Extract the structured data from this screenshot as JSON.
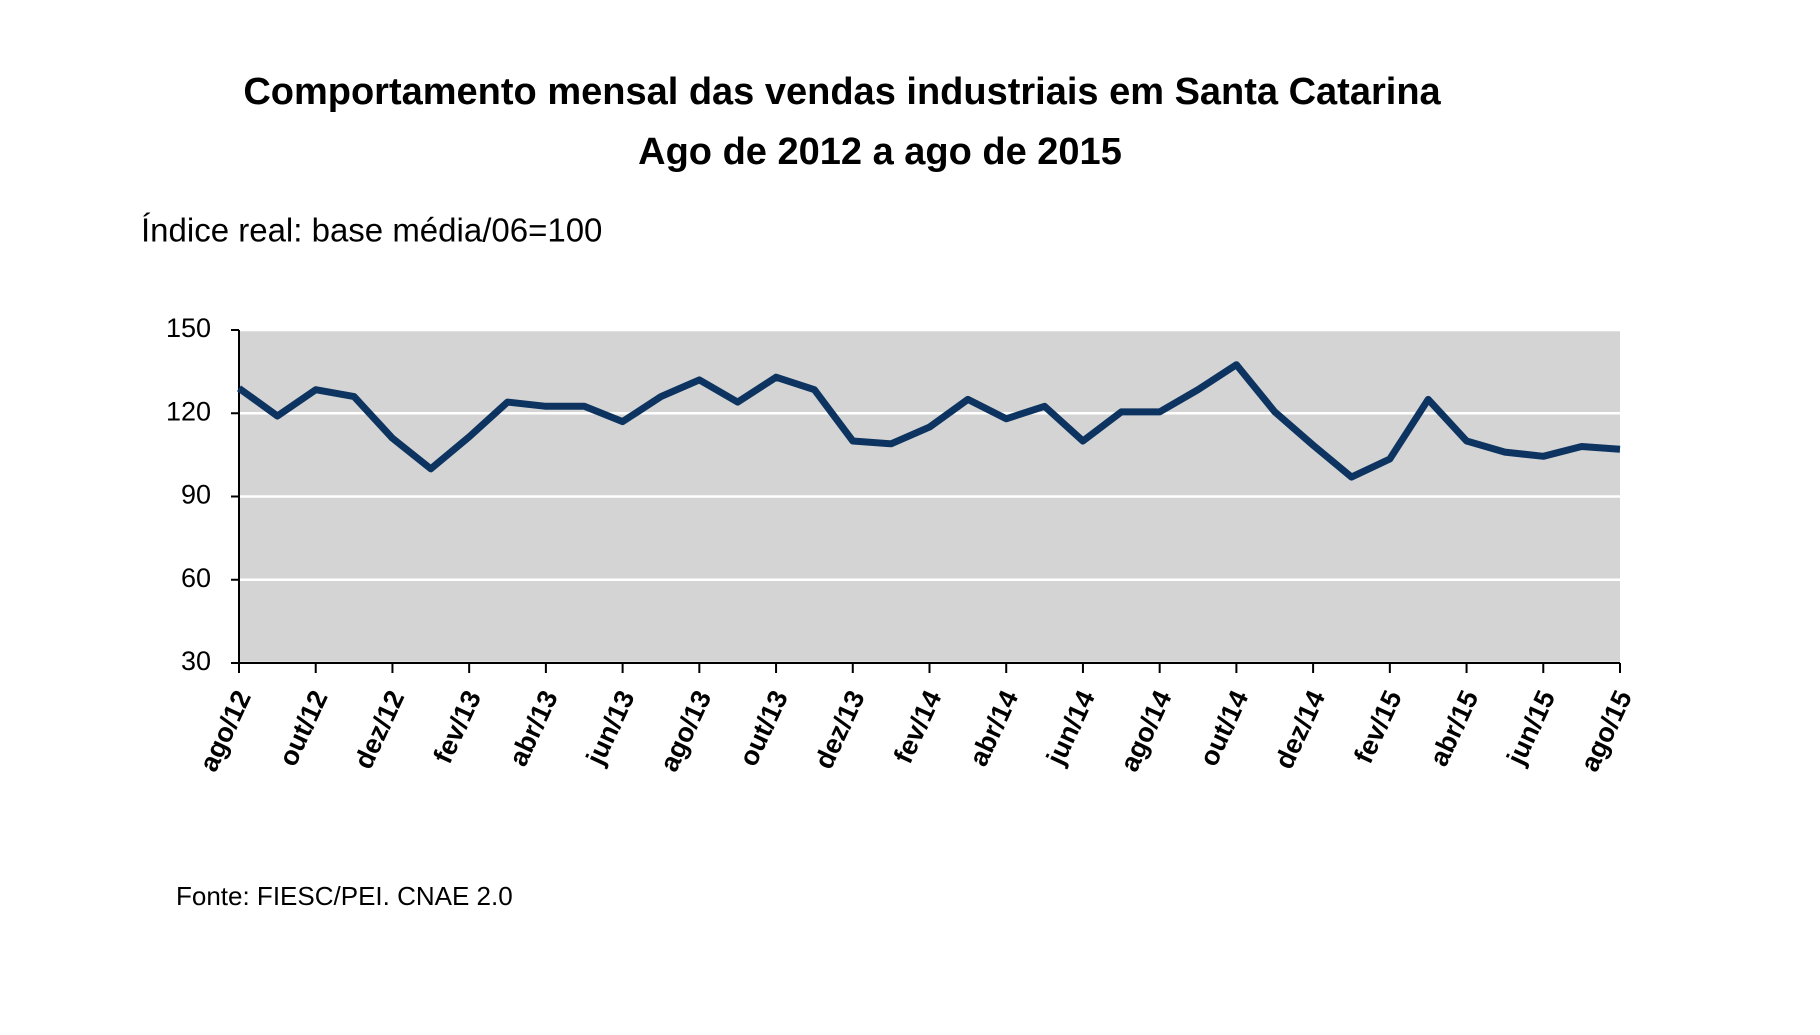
{
  "chart_data": {
    "type": "line",
    "title": "Comportamento mensal das vendas industriais em Santa Catarina",
    "subtitle": "Ago de 2012 a ago de 2015",
    "ylabel": "Índice real: base média/06=100",
    "source": "Fonte: FIESC/PEI. CNAE 2.0",
    "categories": [
      "ago/12",
      null,
      "out/12",
      null,
      "dez/12",
      null,
      "fev/13",
      null,
      "abr/13",
      null,
      "jun/13",
      null,
      "ago/13",
      null,
      "out/13",
      null,
      "dez/13",
      null,
      "fev/14",
      null,
      "abr/14",
      null,
      "jun/14",
      null,
      "ago/14",
      null,
      "out/14",
      null,
      "dez/14",
      null,
      "fev/15",
      null,
      "abr/15",
      null,
      "jun/15",
      null,
      "ago/15"
    ],
    "series": [
      {
        "color": "#0d3461",
        "values": [
          129,
          119,
          128.5,
          126,
          111,
          100,
          111.5,
          124,
          122.5,
          122.5,
          117,
          126,
          132,
          124,
          133,
          128.5,
          110,
          109,
          115,
          125,
          118,
          122.5,
          110,
          120.5,
          120.5,
          128.5,
          137.5,
          120.5,
          108.5,
          97,
          103.5,
          125,
          110,
          106,
          104.5,
          108,
          107
        ]
      }
    ],
    "ylim": [
      30,
      150
    ],
    "yticks": [
      30,
      60,
      90,
      120,
      150
    ],
    "grid": true,
    "plot_background": "#d4d4d4"
  }
}
